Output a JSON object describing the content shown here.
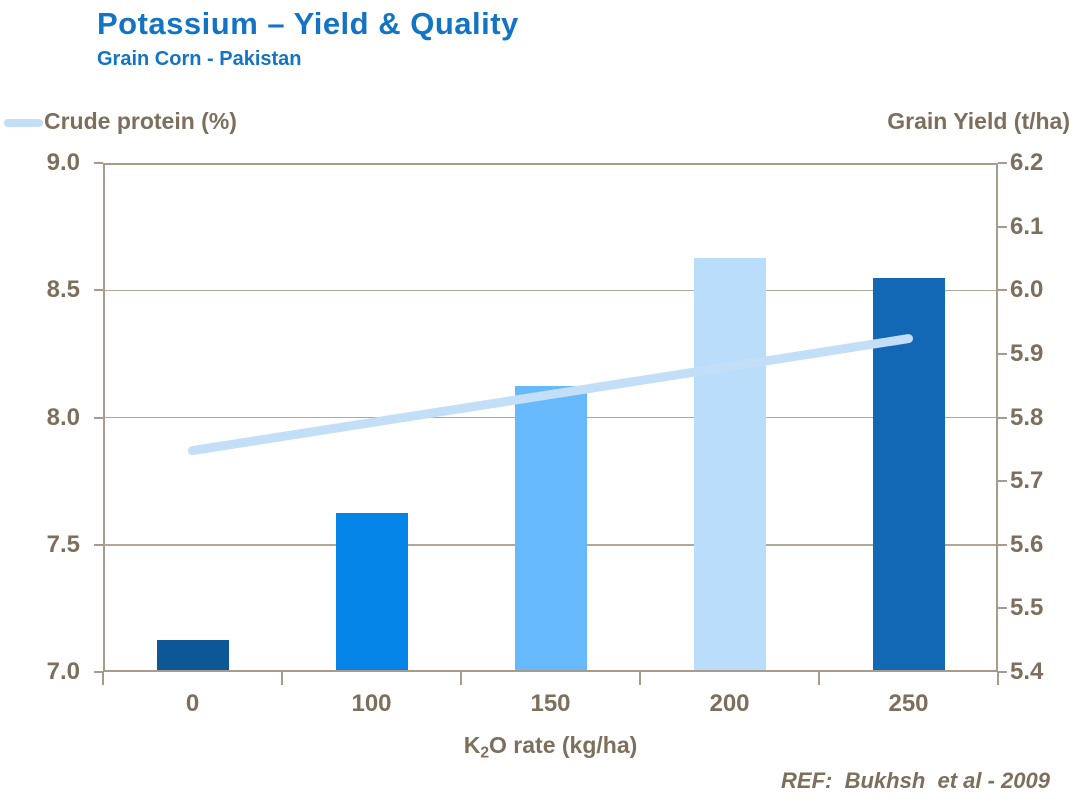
{
  "header": {
    "title": "Potassium – Yield & Quality",
    "subtitle": "Grain Corn - Pakistan"
  },
  "footer": {
    "ref": "REF:  Bukhsh  et al - 2009"
  },
  "colors": {
    "title": "#1374c4",
    "text": "#7e6f5c",
    "axis_line": "#a89b8c",
    "gridline": "#b3a79a",
    "line_series": "#c3def7",
    "bar_colors": [
      "#0d5796",
      "#0484e6",
      "#66b9fa",
      "#b9ddfb",
      "#1268b5"
    ]
  },
  "chart_data": {
    "type": "bar",
    "subtype": "bar-and-line-dual-axis",
    "categories": [
      "0",
      "100",
      "150",
      "200",
      "250"
    ],
    "series": [
      {
        "name": "Grain Yield (t/ha)",
        "type": "bar",
        "axis": "right",
        "values": [
          5.45,
          5.65,
          5.85,
          6.05,
          6.02
        ],
        "colors": [
          "#0d5796",
          "#0484e6",
          "#66b9fa",
          "#b9ddfb",
          "#1268b5"
        ]
      },
      {
        "name": "Crude protein (%)",
        "type": "line",
        "axis": "left",
        "values": [
          7.87,
          7.98,
          8.09,
          8.2,
          8.31
        ],
        "color": "#c3def7"
      }
    ],
    "left_axis": {
      "label": "Crude protein (%)",
      "min": 7.0,
      "max": 9.0,
      "ticks": [
        "9.0",
        "8.5",
        "8.0",
        "7.5",
        "7.0"
      ]
    },
    "right_axis": {
      "label": "Grain Yield (t/ha)",
      "min": 5.4,
      "max": 6.2,
      "ticks": [
        "6.2",
        "6.1",
        "6.0",
        "5.9",
        "5.8",
        "5.7",
        "5.6",
        "5.5",
        "5.4"
      ]
    },
    "xlabel_parts": {
      "prefix": "K",
      "sub": "2",
      "suffix": "O rate (kg/ha)"
    },
    "gridlines_at": [
      8.5,
      8.0,
      7.5
    ],
    "grid": "horizontal-only",
    "legend_position": "top-left"
  }
}
